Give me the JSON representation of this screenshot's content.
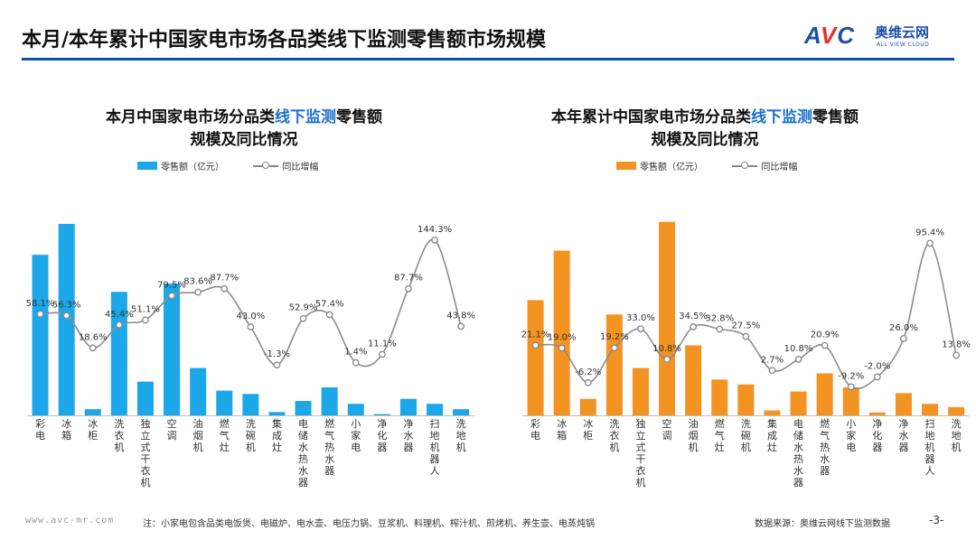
{
  "page_title": "本月/本年累计中国家电市场各品类线下监测零售额市场规模",
  "logo": {
    "mark": "AVC",
    "name": "奥维云网",
    "tagline": "ALL VIEW CLOUD"
  },
  "footer": {
    "website": "www.avc-mr.com",
    "note": "注：小家电包含品类电饭煲、电磁炉、电水壶、电压力锅、豆浆机、料理机、榨汁机、煎烤机、养生壶、电蒸炖锅",
    "source": "数据来源：奥维云网线下监测数据",
    "page": "-3-"
  },
  "colors": {
    "left_bar": "#1ba7e8",
    "right_bar": "#f39321",
    "line": "#8c8c8c",
    "accent": "#1a6fd0",
    "rule": "#0f4ea8"
  },
  "chart_data": [
    {
      "type": "bar",
      "title_prefix": "本月中国家电市场分品类",
      "title_highlight": "线下监测",
      "title_suffix": "零售额",
      "title_line2": "规模及同比情况",
      "legend": {
        "bar": "零售额（亿元）",
        "line": "同比增幅"
      },
      "categories": [
        "彩电",
        "冰箱",
        "冰柜",
        "洗衣机",
        "独立式干衣机",
        "空调",
        "油烟机",
        "燃气灶",
        "洗碗机",
        "集成灶",
        "电储水热水器",
        "燃气热水器",
        "小家电",
        "净化器",
        "净水器",
        "扫地机器人",
        "洗地机"
      ],
      "bar_series": {
        "name": "零售额（亿元）",
        "values": [
          39.0,
          46.5,
          1.5,
          30.0,
          8.2,
          32.0,
          11.5,
          6.0,
          5.2,
          0.8,
          3.5,
          6.8,
          2.8,
          0.3,
          4.0,
          2.8,
          1.5
        ],
        "ylim": [
          0,
          50
        ]
      },
      "line_series": {
        "name": "同比增幅",
        "values": [
          58.1,
          56.3,
          18.6,
          45.4,
          51.1,
          79.5,
          83.6,
          87.7,
          43.0,
          -1.3,
          52.9,
          57.4,
          1.4,
          11.1,
          87.7,
          144.3,
          43.8
        ],
        "labels": [
          "58.1%",
          "56.3%",
          "18.6%",
          "45.4%",
          "51.1%",
          "79.5%",
          "83.6%",
          "87.7%",
          "43.0%",
          "-1.3%",
          "52.9%",
          "57.4%",
          "1.4%",
          "11.1%",
          "87.7%",
          "144.3%",
          "43.8%"
        ],
        "ylim": [
          -60,
          180
        ]
      }
    },
    {
      "type": "bar",
      "title_prefix": "本年累计中国家电市场分品类",
      "title_highlight": "线下监测",
      "title_suffix": "零售额",
      "title_line2": "规模及同比情况",
      "legend": {
        "bar": "零售额（亿元）",
        "line": "同比增幅"
      },
      "categories": [
        "彩电",
        "冰箱",
        "冰柜",
        "洗衣机",
        "独立式干衣机",
        "空调",
        "油烟机",
        "燃气灶",
        "洗碗机",
        "集成灶",
        "电储水热水器",
        "燃气热水器",
        "小家电",
        "净化器",
        "净水器",
        "扫地机器人",
        "洗地机"
      ],
      "bar_series": {
        "name": "零售额（亿元）",
        "values": [
          280,
          400,
          40,
          245,
          115,
          470,
          170,
          87,
          75,
          12,
          58,
          102,
          68,
          7,
          54,
          28,
          20
        ],
        "ylim": [
          0,
          500
        ]
      },
      "line_series": {
        "name": "同比增幅",
        "values": [
          21.1,
          19.0,
          -6.2,
          19.2,
          33.0,
          10.8,
          34.5,
          32.8,
          27.5,
          2.7,
          10.8,
          20.9,
          -9.2,
          -2.0,
          26.0,
          95.4,
          13.8
        ],
        "labels": [
          "21.1%",
          "19.0%",
          "-6.2%",
          "19.2%",
          "33.0%",
          "10.8%",
          "34.5%",
          "32.8%",
          "27.5%",
          "2.7%",
          "10.8%",
          "20.9%",
          "-9.2%",
          "-2.0%",
          "26.0%",
          "95.4%",
          "13.8%"
        ],
        "ylim": [
          -30,
          120
        ]
      }
    }
  ]
}
